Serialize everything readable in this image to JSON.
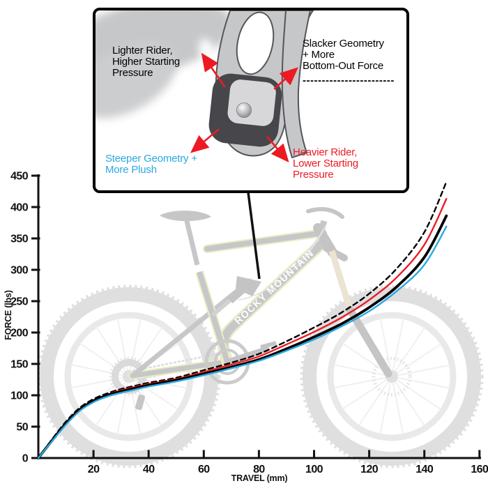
{
  "inset": {
    "labels": {
      "lighter": "Lighter Rider,\nHigher Starting\nPressure",
      "slacker": "Slacker Geometry\n+ More\nBottom-Out Force",
      "slacker_dashes": "------------------------",
      "steeper": "Steeper Geometry +\nMore Plush",
      "heavier": "Heavier Rider,\nLower Starting\nPressure"
    },
    "colors": {
      "lighter_text": "#000000",
      "slacker_text": "#000000",
      "steeper_text": "#29A9E1",
      "heavier_text": "#EC1B23",
      "arrow": "#EC1B23"
    }
  },
  "bike": {
    "brand": "ROCKY MOUNTAIN"
  },
  "chart_data": {
    "type": "line",
    "title": "",
    "xlabel": "TRAVEL (mm)",
    "ylabel": "FORCE (lbs)",
    "xlim": [
      0,
      160
    ],
    "ylim": [
      0,
      450
    ],
    "xticks": [
      20,
      40,
      60,
      80,
      100,
      120,
      140,
      160
    ],
    "yticks": [
      0,
      50,
      100,
      150,
      200,
      250,
      300,
      350,
      400,
      450
    ],
    "grid": false,
    "legend": "inset-callout",
    "x": [
      0,
      5,
      10,
      15,
      20,
      25,
      30,
      35,
      40,
      50,
      60,
      70,
      80,
      90,
      100,
      110,
      120,
      130,
      140,
      148
    ],
    "series": [
      {
        "id": "slacker",
        "name": "Slacker Geometry + More Bottom-Out Force",
        "color": "#000000",
        "dash": "7 5",
        "width": 2.4,
        "values": [
          0,
          30,
          58,
          80,
          94,
          103,
          110,
          115,
          120,
          128,
          140,
          152,
          166,
          186,
          208,
          232,
          262,
          302,
          360,
          440
        ]
      },
      {
        "id": "heavier",
        "name": "Heavier Rider, Lower Starting Pressure",
        "color": "#EC1B23",
        "dash": "",
        "width": 2.4,
        "values": [
          0,
          29,
          56,
          78,
          92,
          101,
          108,
          113,
          118,
          126,
          137,
          149,
          162,
          181,
          201,
          224,
          252,
          288,
          340,
          413
        ]
      },
      {
        "id": "lighter",
        "name": "Lighter Rider, Higher Starting Pressure",
        "color": "#000000",
        "dash": "",
        "width": 3.8,
        "values": [
          0,
          28,
          55,
          77,
          91,
          100,
          106,
          111,
          116,
          124,
          134,
          145,
          157,
          174,
          193,
          214,
          240,
          273,
          320,
          386
        ]
      },
      {
        "id": "steeper",
        "name": "Steeper Geometry + More Plush",
        "color": "#29A9E1",
        "dash": "",
        "width": 2.4,
        "values": [
          0,
          27,
          53,
          75,
          89,
          98,
          104,
          109,
          114,
          122,
          132,
          143,
          155,
          171,
          189,
          210,
          234,
          266,
          308,
          369
        ]
      }
    ]
  }
}
